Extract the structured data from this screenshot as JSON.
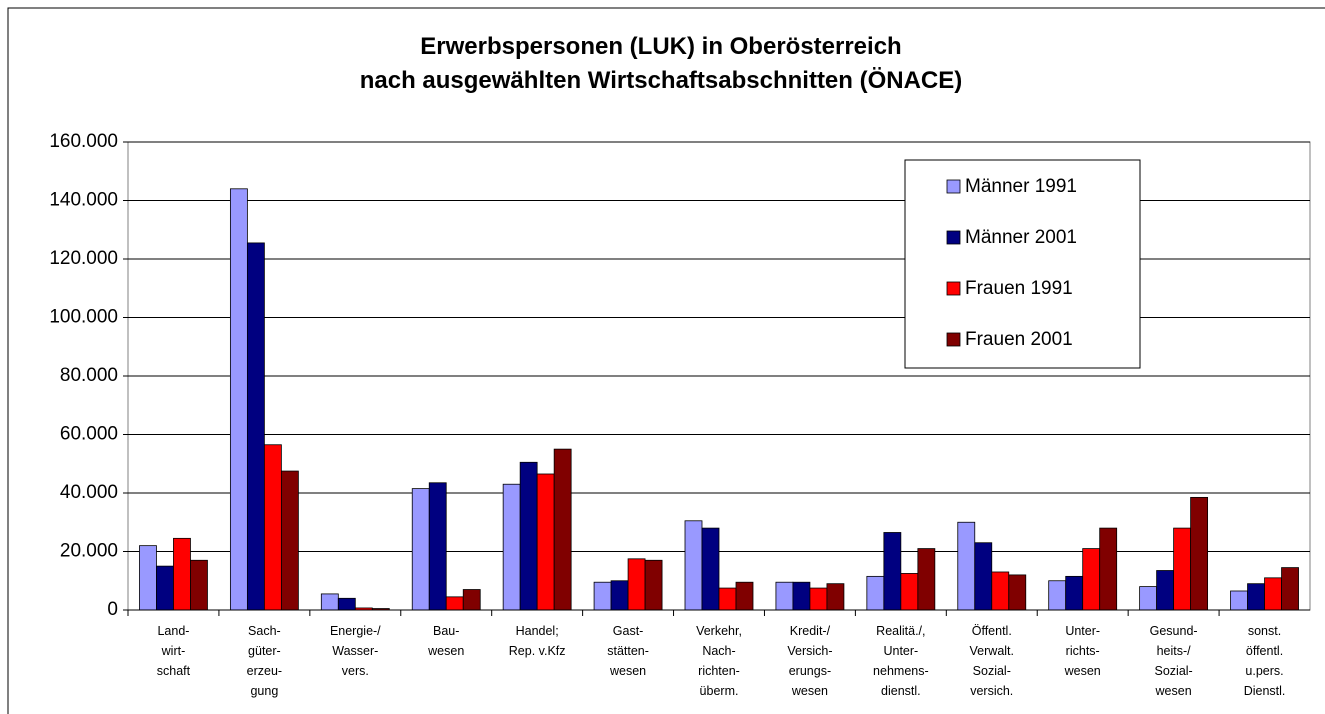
{
  "chart_data": {
    "type": "bar",
    "title": "Erwerbspersonen (LUK) in Oberösterreich\nnach ausgewählten Wirtschaftsabschnitten (ÖNACE)",
    "categories": [
      "Land-\nwirt-\nschaft",
      "Sach-\ngüter-\nerzeu-\ngung",
      "Energie-/\nWasser-\nvers.",
      "Bau-\nwesen",
      "Handel;\nRep. v.Kfz",
      "Gast-\nstätten-\nwesen",
      "Verkehr,\nNach-\nrichten-\nüberm.",
      "Kredit-/\nVersich-\nerungs-\nwesen",
      "Realitä./,\nUnter-\nnehmens-\ndienstl.",
      "Öffentl.\nVerwalt.\nSozial-\nversich.",
      "Unter-\nrichts-\nwesen",
      "Gesund-\nheits-/\nSozial-\nwesen",
      "sonst.\nöffentl.\nu.pers.\nDienstl."
    ],
    "series": [
      {
        "name": "Männer 1991",
        "color": "#9999ff",
        "values": [
          22000,
          144000,
          5500,
          41500,
          43000,
          9500,
          30500,
          9500,
          11500,
          30000,
          10000,
          8000,
          6500
        ]
      },
      {
        "name": "Männer 2001",
        "color": "#000080",
        "values": [
          15000,
          125500,
          4000,
          43500,
          50500,
          10000,
          28000,
          9500,
          26500,
          23000,
          11500,
          13500,
          9000
        ]
      },
      {
        "name": "Frauen 1991",
        "color": "#ff0000",
        "values": [
          24500,
          56500,
          700,
          4500,
          46500,
          17500,
          7500,
          7500,
          12500,
          13000,
          21000,
          28000,
          11000
        ]
      },
      {
        "name": "Frauen 2001",
        "color": "#800000",
        "values": [
          17000,
          47500,
          500,
          7000,
          55000,
          17000,
          9500,
          9000,
          21000,
          12000,
          28000,
          38500,
          14500
        ]
      }
    ],
    "ylim": [
      0,
      160000
    ],
    "yticks": [
      0,
      {
        "value": 20000,
        "label": "20.000"
      },
      {
        "value": 40000,
        "label": "40.000"
      },
      {
        "value": 60000,
        "label": "60.000"
      },
      {
        "value": 80000,
        "label": "80.000"
      },
      {
        "value": 100000,
        "label": "100.000"
      },
      {
        "value": 120000,
        "label": "120.000"
      },
      {
        "value": 140000,
        "label": "140.000"
      },
      {
        "value": 160000,
        "label": "160.000"
      }
    ],
    "grid": true,
    "legend": "upper right"
  }
}
